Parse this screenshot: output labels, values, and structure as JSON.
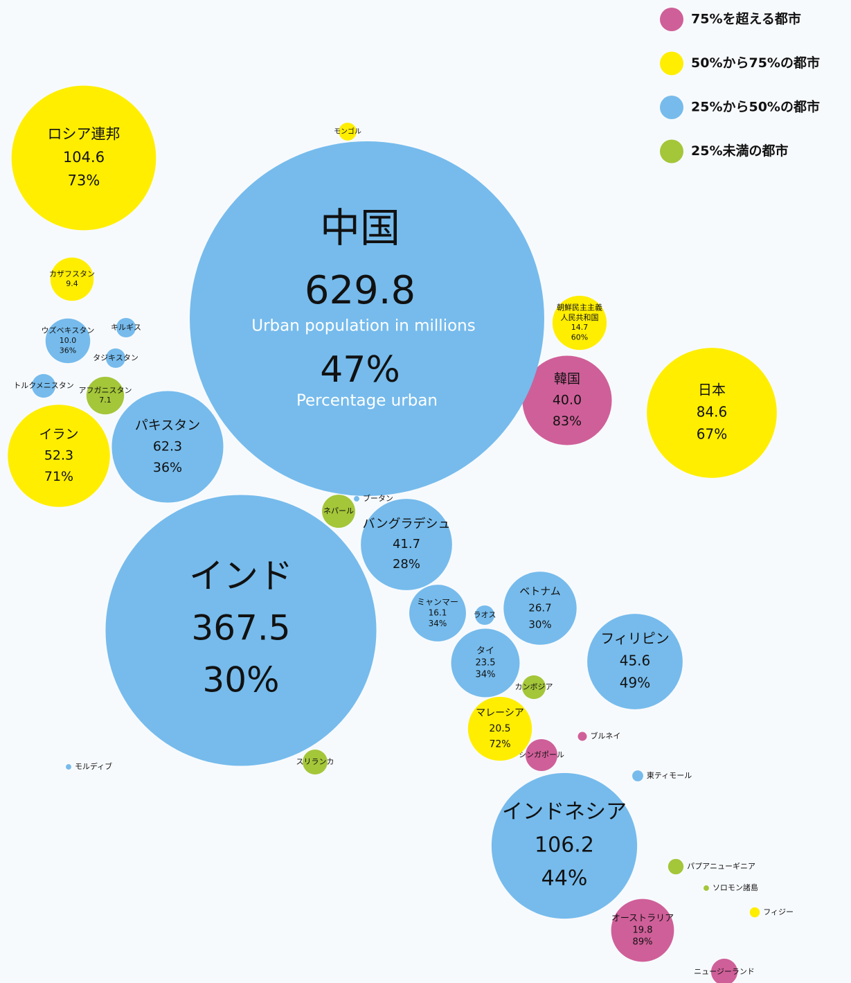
{
  "chart_data": {
    "type": "bubble",
    "annotations": [
      "Urban population in millions",
      "Percentage urban"
    ],
    "series": [
      {
        "name": "75%を超える都市",
        "color": "#cf5f99",
        "labels": [
          "韓国",
          "ブルネイ",
          "シンガポール",
          "オーストラリア",
          "ニュージーランド"
        ],
        "values": [
          40.0,
          0.4,
          5.1,
          19.8,
          3.5
        ],
        "value_labels": [
          "40.0",
          null,
          null,
          "19.8",
          null
        ],
        "percents": [
          83,
          null,
          null,
          89,
          null
        ],
        "percent_labels": [
          "83%",
          null,
          null,
          "89%",
          null
        ]
      },
      {
        "name": "50%から75%の都市",
        "color": "#ffee00",
        "labels": [
          "ロシア連邦",
          "モンゴル",
          "カザフスタン",
          "朝鮮民主主義\n人民共和国",
          "日本",
          "イラン",
          "マレーシア",
          "フィジー"
        ],
        "values": [
          104.6,
          1.6,
          9.4,
          14.7,
          84.6,
          52.3,
          20.5,
          0.5
        ],
        "value_labels": [
          "104.6",
          null,
          "9.4",
          "14.7",
          "84.6",
          "52.3",
          "20.5",
          null
        ],
        "percents": [
          73,
          null,
          null,
          60,
          67,
          71,
          72,
          null
        ],
        "percent_labels": [
          "73%",
          null,
          null,
          "60%",
          "67%",
          "71%",
          "72%",
          null
        ]
      },
      {
        "name": "25%から50%の都市",
        "color": "#76bbec",
        "labels": [
          "中国",
          "ウズベキスタン",
          "キルギス",
          "タジキスタン",
          "トルクメニスタン",
          "パキスタン",
          "ブータン",
          "モルディブ",
          "インド",
          "バングラデシュ",
          "ミャンマー",
          "ラオス",
          "ベトナム",
          "タイ",
          "フィリピン",
          "東ティモール",
          "インドネシア"
        ],
        "values": [
          629.8,
          10.0,
          1.9,
          1.9,
          2.8,
          62.3,
          0.15,
          0.15,
          367.5,
          41.7,
          16.1,
          1.9,
          26.7,
          23.5,
          45.6,
          0.6,
          106.2
        ],
        "value_labels": [
          "629.8",
          "10.0",
          null,
          null,
          null,
          "62.3",
          null,
          null,
          "367.5",
          "41.7",
          "16.1",
          null,
          "26.7",
          "23.5",
          "45.6",
          null,
          "106.2"
        ],
        "percents": [
          47,
          36,
          null,
          null,
          null,
          36,
          null,
          null,
          30,
          28,
          34,
          null,
          30,
          34,
          49,
          null,
          44
        ],
        "percent_labels": [
          "47%",
          "36%",
          null,
          null,
          null,
          "36%",
          null,
          null,
          "30%",
          "28%",
          "34%",
          null,
          "30%",
          "34%",
          "49%",
          null,
          "44%"
        ]
      },
      {
        "name": "25%未満の都市",
        "color": "#a4c639",
        "labels": [
          "アフガニスタン",
          "ネパール",
          "スリランカ",
          "カンボジア",
          "パプアニューギニア",
          "ソロモン諸島"
        ],
        "values": [
          7.1,
          5.5,
          3.1,
          2.8,
          1.2,
          0.15
        ],
        "value_labels": [
          "7.1",
          null,
          null,
          null,
          null,
          null
        ],
        "percents": [
          null,
          null,
          null,
          null,
          null,
          null
        ],
        "percent_labels": [
          null,
          null,
          null,
          null,
          null,
          null
        ]
      }
    ]
  }
}
